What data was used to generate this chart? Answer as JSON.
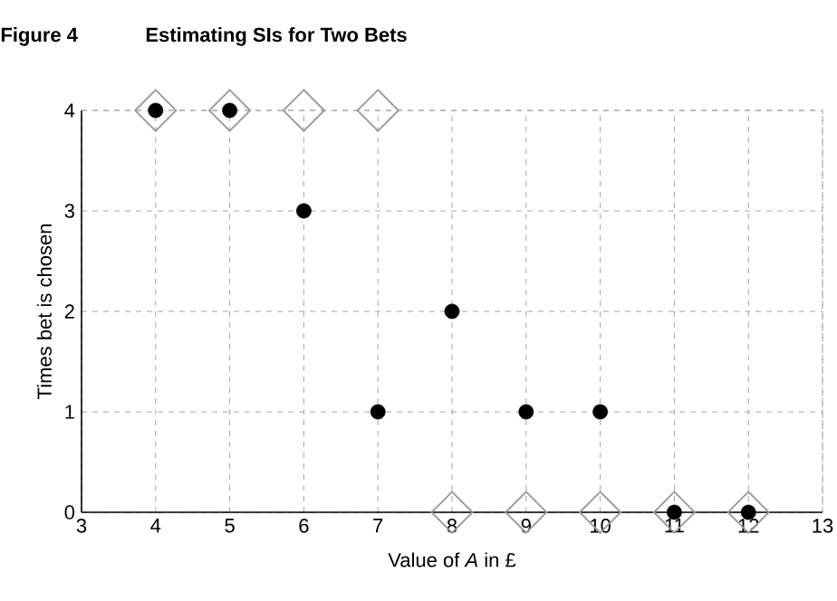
{
  "chart_data": {
    "type": "scatter",
    "title": "Estimating SIs for Two Bets",
    "annotations": [
      "Figure 4"
    ],
    "xlabel": "Value of *A* in £",
    "ylabel": "Times bet is chosen",
    "series": [
      {
        "marker": "diamond",
        "color": "#999999",
        "x": [
          4,
          5,
          6,
          7,
          8,
          9,
          10,
          11,
          12
        ],
        "values": [
          4,
          4,
          4,
          4,
          0,
          0,
          0,
          0,
          0
        ]
      },
      {
        "marker": "circle",
        "color": "#000000",
        "x": [
          4,
          5,
          6,
          7,
          8,
          9,
          10,
          11,
          12
        ],
        "values": [
          4,
          4,
          3,
          1,
          2,
          1,
          1,
          0,
          0
        ]
      }
    ],
    "xlim": [
      3,
      13
    ],
    "ylim": [
      0,
      4
    ],
    "xticks": [
      3,
      4,
      5,
      6,
      7,
      8,
      9,
      10,
      11,
      12,
      13
    ],
    "yticks": [
      0,
      1,
      2,
      3,
      4
    ],
    "grid": true
  }
}
